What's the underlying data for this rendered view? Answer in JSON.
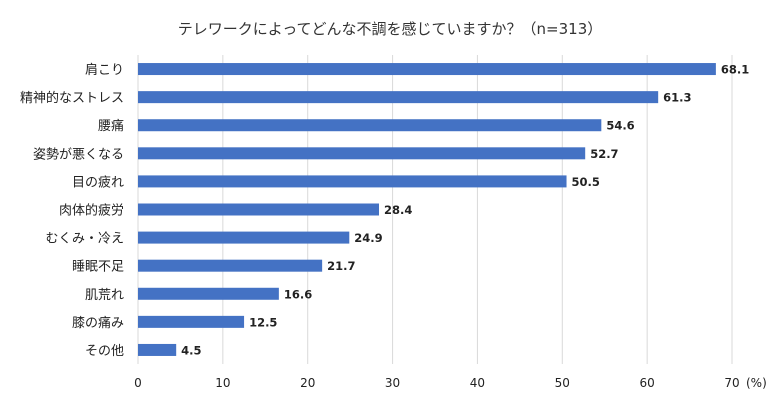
{
  "chart_data": {
    "type": "bar",
    "orientation": "horizontal",
    "title": "テレワークによってどんな不調を感じていますか？（n=313）",
    "categories": [
      "肩こり",
      "精神的なストレス",
      "腰痛",
      "姿勢が悪くなる",
      "目の疲れ",
      "肉体的疲労",
      "むくみ・冷え",
      "睡眠不足",
      "肌荒れ",
      "膝の痛み",
      "その他"
    ],
    "values": [
      68.1,
      61.3,
      54.6,
      52.7,
      50.5,
      28.4,
      24.9,
      21.7,
      16.6,
      12.5,
      4.5
    ],
    "value_labels": [
      "68.1",
      "61.3",
      "54.6",
      "52.7",
      "50.5",
      "28.4",
      "24.9",
      "21.7",
      "16.6",
      "12.5",
      "4.5"
    ],
    "xlim": [
      0,
      70
    ],
    "xticks": [
      "0",
      "10",
      "20",
      "30",
      "40",
      "50",
      "60",
      "70"
    ],
    "x_unit": "(%)",
    "grid": "vertical",
    "bar_color": "#4472c4",
    "grid_color": "#d9d9d9"
  }
}
